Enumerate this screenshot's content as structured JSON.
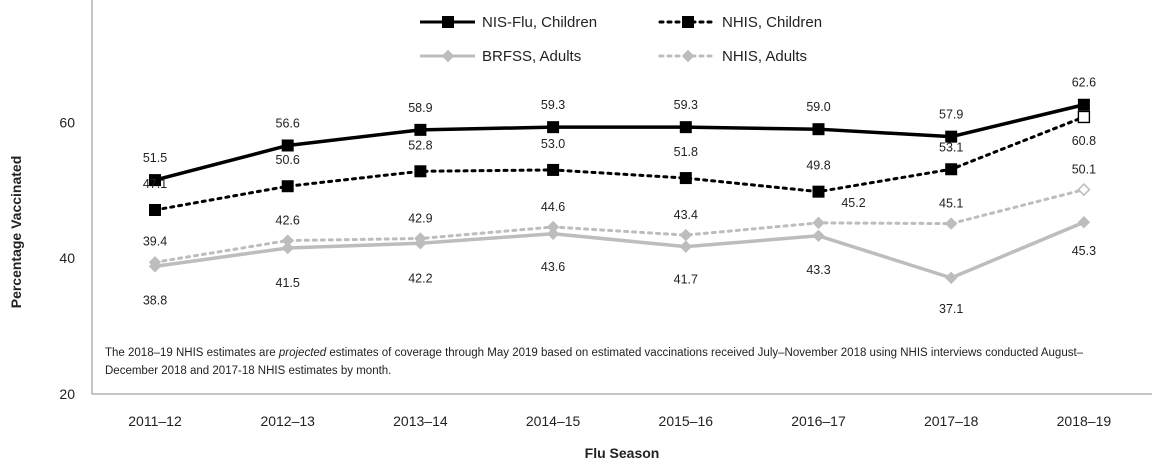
{
  "chart_data": {
    "type": "line",
    "xlabel": "Flu Season",
    "ylabel": "Percentage Vaccinated",
    "ylim": [
      20,
      80
    ],
    "yticks": [
      20,
      40,
      60
    ],
    "grid": false,
    "legend_position": "top",
    "categories": [
      "2011–12",
      "2012–13",
      "2013–14",
      "2014–15",
      "2015–16",
      "2016–17",
      "2017–18",
      "2018–19"
    ],
    "series": [
      {
        "name": "NIS-Flu, Children",
        "values": [
          51.5,
          56.6,
          58.9,
          59.3,
          59.3,
          59.0,
          57.9,
          62.6
        ],
        "color": "#000000",
        "style": "solid",
        "marker": "square"
      },
      {
        "name": "NHIS, Children",
        "values": [
          47.1,
          50.6,
          52.8,
          53.0,
          51.8,
          49.8,
          53.1,
          60.8
        ],
        "color": "#000000",
        "style": "dotted",
        "marker": "square"
      },
      {
        "name": "BRFSS, Adults",
        "values": [
          38.8,
          41.5,
          42.2,
          43.6,
          41.7,
          43.3,
          37.1,
          45.3
        ],
        "color": "#bdbdbd",
        "style": "solid",
        "marker": "diamond"
      },
      {
        "name": "NHIS, Adults",
        "values": [
          39.4,
          42.6,
          42.9,
          44.6,
          43.4,
          45.2,
          45.1,
          50.1
        ],
        "color": "#bdbdbd",
        "style": "dotted",
        "marker": "diamond"
      }
    ],
    "projected_last_point": true
  },
  "footnote": {
    "before": "The 2018–19 NHIS estimates are ",
    "emphasis": "projected",
    "after": " estimates of coverage through May 2019 based on estimated vaccinations received July–November 2018 using NHIS interviews conducted August–December 2018 and 2017-18 NHIS estimates by month."
  }
}
